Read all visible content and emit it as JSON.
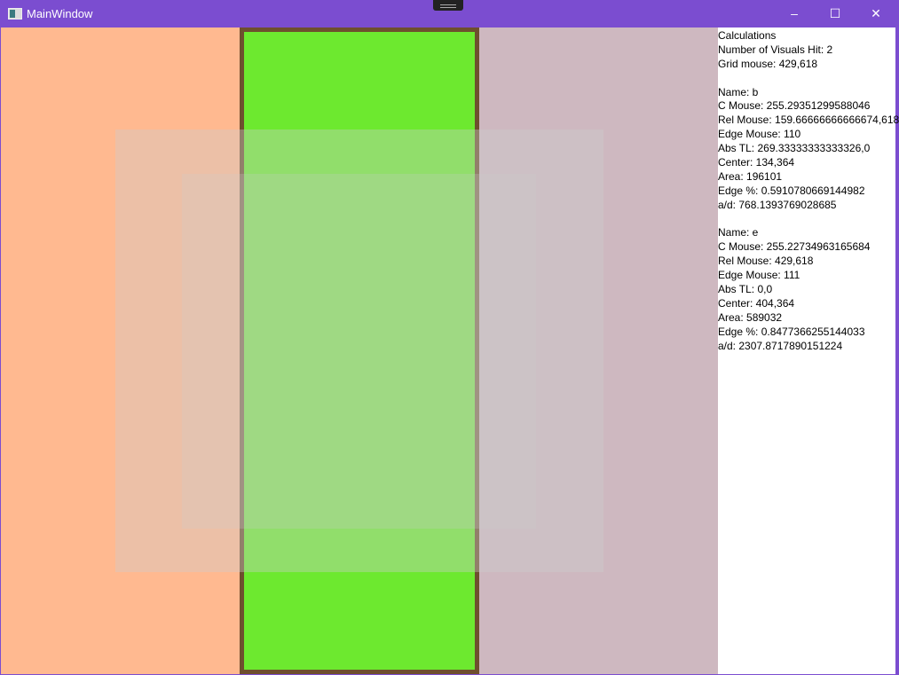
{
  "window": {
    "title": "MainWindow",
    "minimize": "–",
    "maximize": "☐",
    "close": "✕"
  },
  "colors": {
    "titlebar": "#7B4DD0",
    "left": "#FFB990",
    "middle_fill": "#6DE92F",
    "middle_border": "#6E4F2E",
    "right": "#CEB8C0"
  },
  "info": {
    "heading": "Calculations",
    "lines": [
      "Number of Visuals Hit: 2",
      "Grid mouse: 429,618",
      "",
      "Name: b",
      "C Mouse: 255.29351299588046",
      "Rel Mouse: 159.66666666666674,618",
      "Edge Mouse: 110",
      "Abs TL: 269.33333333333326,0",
      "Center: 134,364",
      "Area: 196101",
      "Edge %: 0.5910780669144982",
      "a/d: 768.1393769028685",
      "",
      "Name: e",
      "C Mouse: 255.22734963165684",
      "Rel Mouse: 429,618",
      "Edge Mouse: 111",
      "Abs TL: 0,0",
      "Center: 404,364",
      "Area: 589032",
      "Edge %: 0.8477366255144033",
      "a/d: 2307.8717890151224"
    ]
  }
}
